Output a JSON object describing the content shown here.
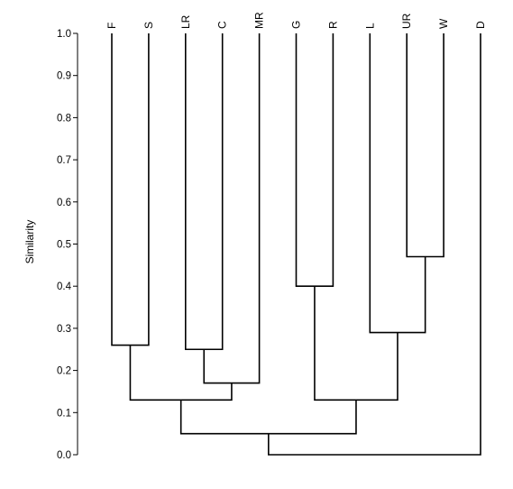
{
  "chart_data": {
    "type": "dendrogram",
    "title": "",
    "ylabel": "Similarity",
    "ylim": [
      0.0,
      1.0
    ],
    "yticks": [
      "0.0",
      "0.1",
      "0.2",
      "0.3",
      "0.4",
      "0.5",
      "0.6",
      "0.7",
      "0.8",
      "0.9",
      "1.0"
    ],
    "leaves": [
      "F",
      "S",
      "LR",
      "C",
      "MR",
      "G",
      "R",
      "L",
      "UR",
      "W",
      "D"
    ],
    "merges": [
      {
        "id": "n1",
        "children": [
          "W",
          "UR"
        ],
        "similarity": 0.47
      },
      {
        "id": "n2",
        "children": [
          "G",
          "R"
        ],
        "similarity": 0.4
      },
      {
        "id": "n3",
        "children": [
          "L",
          "n1"
        ],
        "similarity": 0.29
      },
      {
        "id": "n4",
        "children": [
          "F",
          "S"
        ],
        "similarity": 0.26
      },
      {
        "id": "n5",
        "children": [
          "LR",
          "C"
        ],
        "similarity": 0.25
      },
      {
        "id": "n6",
        "children": [
          "n5",
          "MR"
        ],
        "similarity": 0.17
      },
      {
        "id": "n7",
        "children": [
          "n2",
          "n3"
        ],
        "similarity": 0.13
      },
      {
        "id": "n8",
        "children": [
          "n4",
          "n6"
        ],
        "similarity": 0.13
      },
      {
        "id": "n9",
        "children": [
          "n8",
          "n7"
        ],
        "similarity": 0.05
      },
      {
        "id": "n10",
        "children": [
          "n9",
          "D"
        ],
        "similarity": 0.0
      }
    ]
  }
}
